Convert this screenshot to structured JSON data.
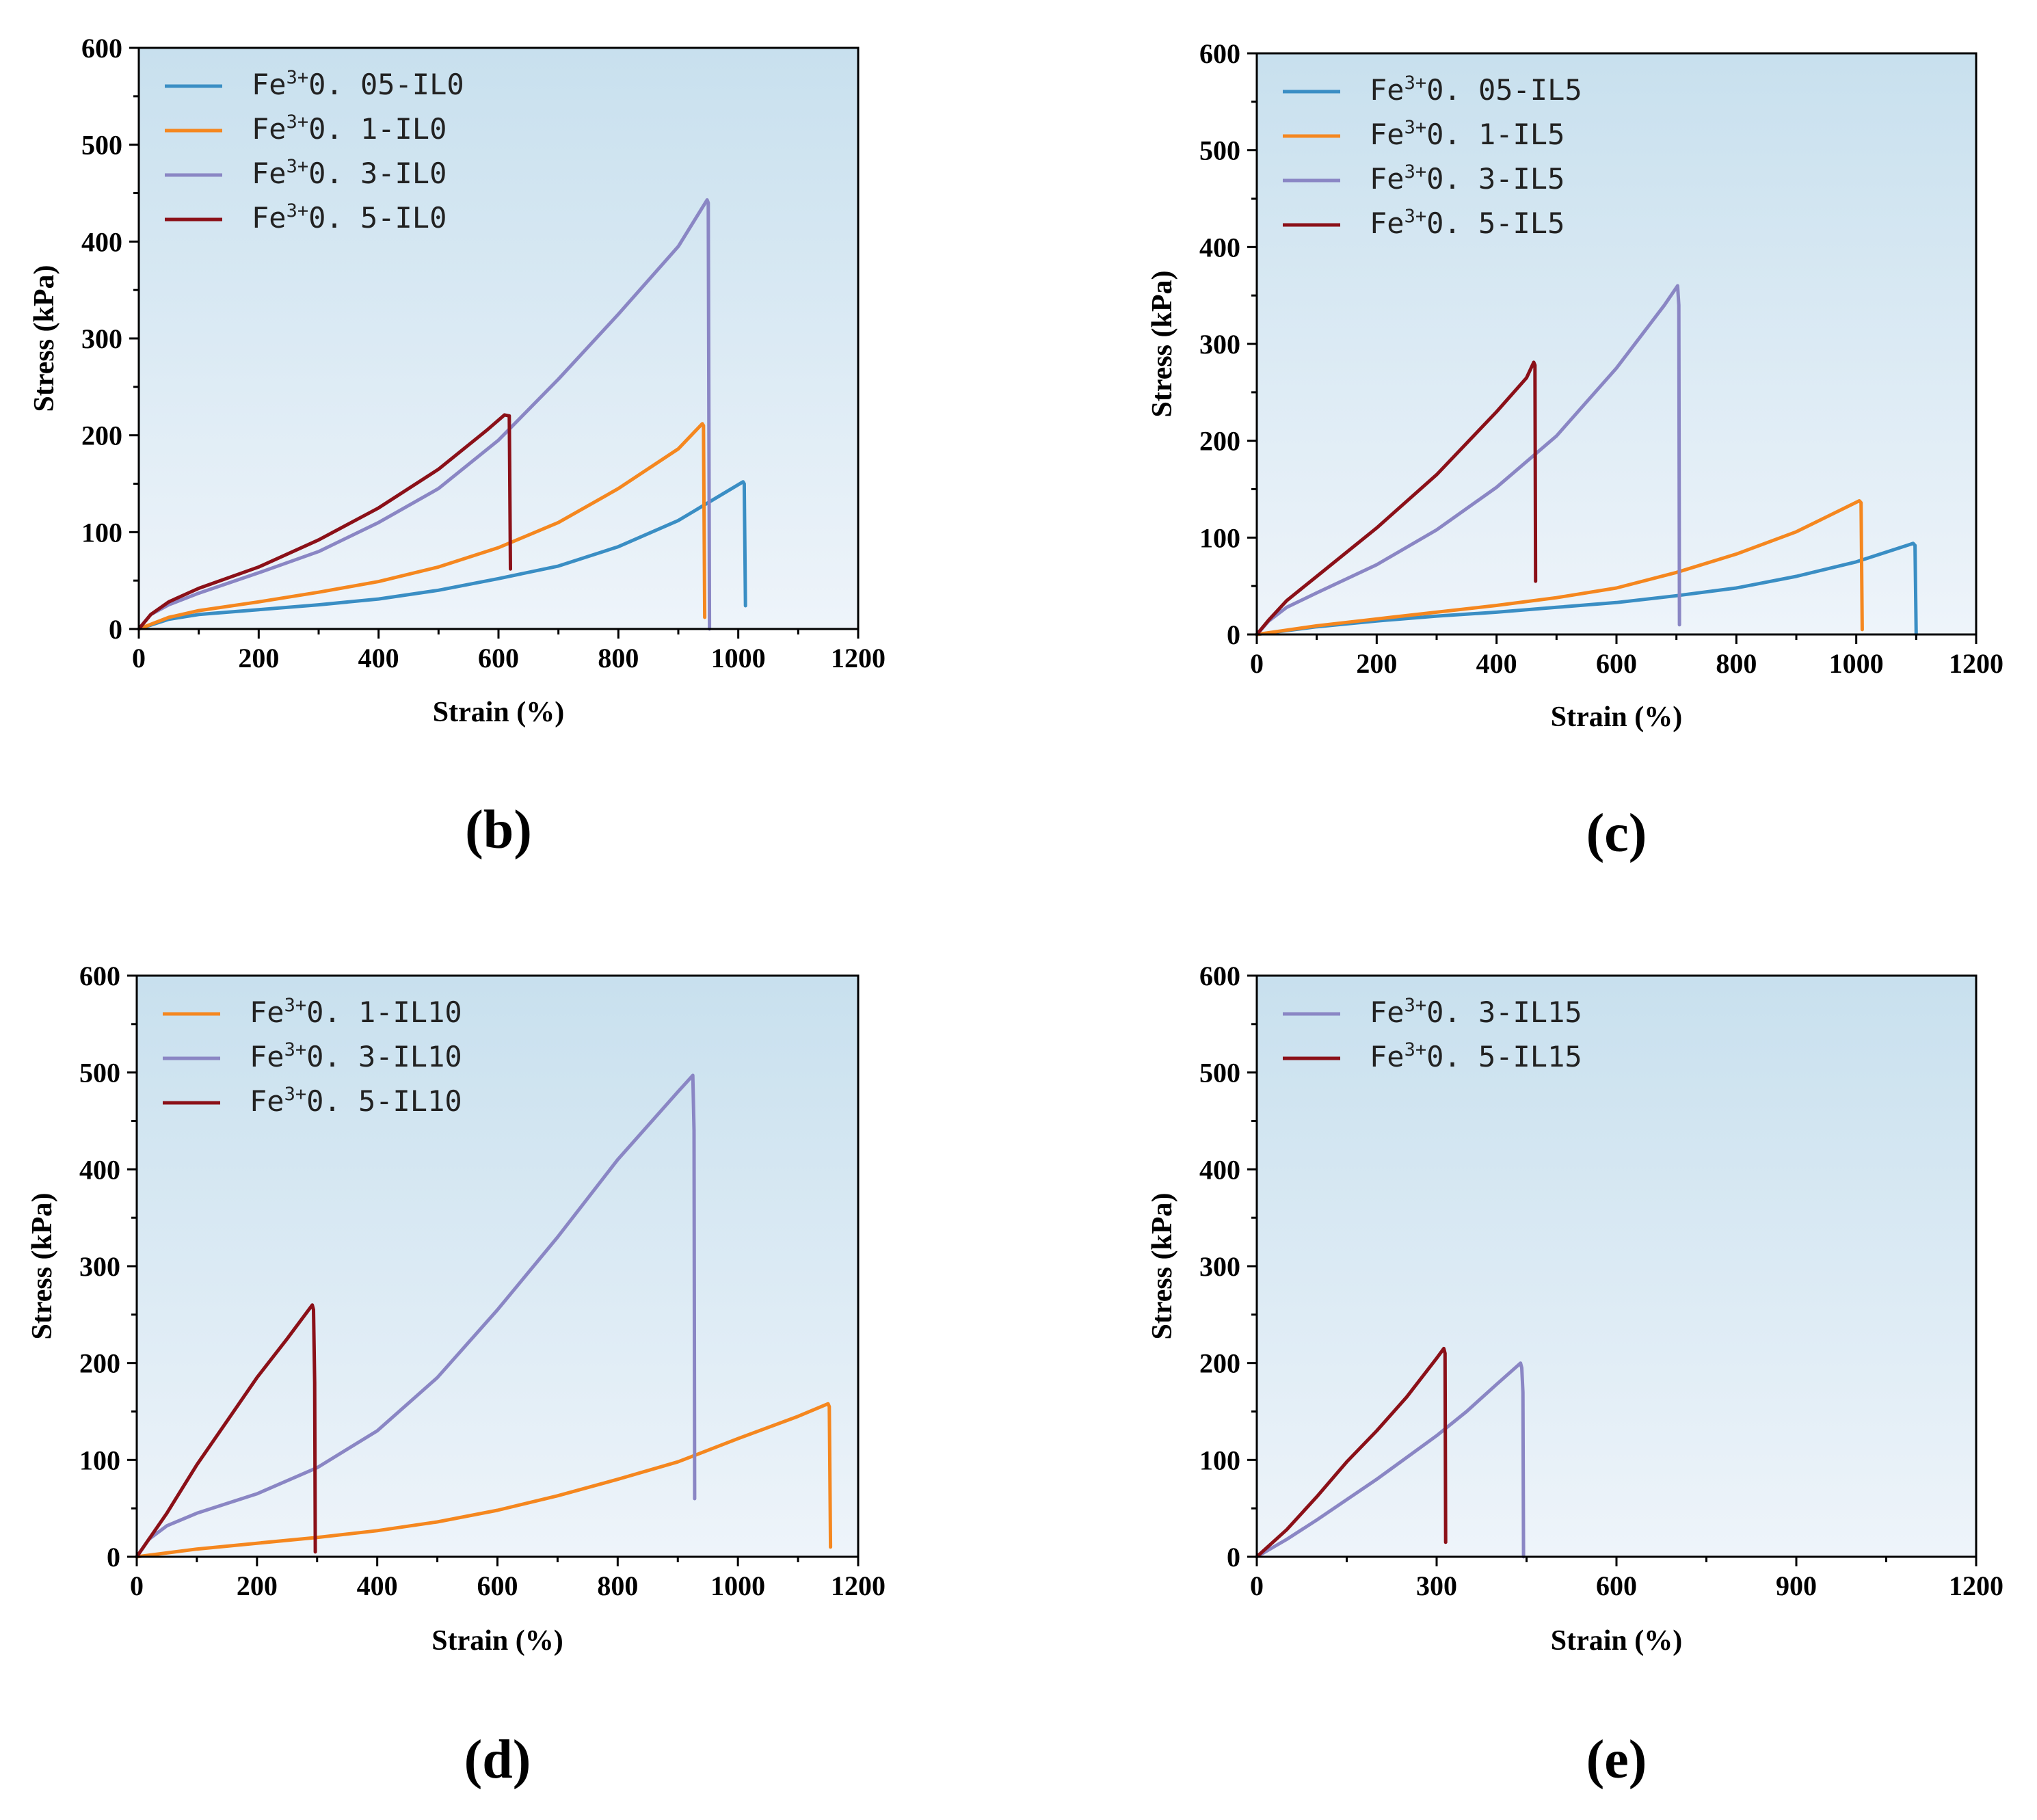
{
  "colors": {
    "blue": "#3a8ec4",
    "orange": "#f5871f",
    "purple": "#8a86c4",
    "darkred": "#8b1018",
    "bg_top": "#c8e0ee",
    "bg_bottom": "#eef4fa"
  },
  "chart_data": [
    {
      "type": "line",
      "panel_label": "(b)",
      "xlabel": "Strain (%)",
      "ylabel": "Stress (kPa)",
      "xlim": [
        0,
        1200
      ],
      "ylim": [
        0,
        600
      ],
      "xticks": [
        0,
        200,
        400,
        600,
        800,
        1000,
        1200
      ],
      "xtick_labels": [
        "0",
        "200",
        "400",
        "600",
        "800",
        "1000",
        "1200"
      ],
      "yticks": [
        0,
        100,
        200,
        300,
        400,
        500,
        600
      ],
      "ytick_labels": [
        "0",
        "100",
        "200",
        "300",
        "400",
        "500",
        "600"
      ],
      "legend_position": "top-left",
      "series": [
        {
          "name": "Fe3+0.05-IL0",
          "legend_base": "Fe",
          "legend_sup": "3+",
          "legend_rest": "0. 05-IL0",
          "color": "blue",
          "points": [
            [
              0,
              0
            ],
            [
              50,
              10
            ],
            [
              100,
              15
            ],
            [
              200,
              20
            ],
            [
              300,
              25
            ],
            [
              400,
              31
            ],
            [
              500,
              40
            ],
            [
              600,
              52
            ],
            [
              700,
              65
            ],
            [
              800,
              85
            ],
            [
              900,
              112
            ],
            [
              1008,
              152
            ],
            [
              1010,
              150
            ],
            [
              1012,
              24
            ]
          ]
        },
        {
          "name": "Fe3+0.1-IL0",
          "legend_base": "Fe",
          "legend_sup": "3+",
          "legend_rest": "0. 1-IL0",
          "color": "orange",
          "points": [
            [
              0,
              0
            ],
            [
              50,
              12
            ],
            [
              100,
              19
            ],
            [
              200,
              28
            ],
            [
              300,
              38
            ],
            [
              400,
              49
            ],
            [
              500,
              64
            ],
            [
              600,
              84
            ],
            [
              700,
              110
            ],
            [
              800,
              145
            ],
            [
              900,
              186
            ],
            [
              940,
              212
            ],
            [
              942,
              210
            ],
            [
              944,
              12
            ]
          ]
        },
        {
          "name": "Fe3+0.3-IL0",
          "legend_base": "Fe",
          "legend_sup": "3+",
          "legend_rest": "0. 3-IL0",
          "color": "purple",
          "points": [
            [
              0,
              0
            ],
            [
              20,
              15
            ],
            [
              50,
              25
            ],
            [
              100,
              37
            ],
            [
              200,
              58
            ],
            [
              300,
              80
            ],
            [
              400,
              110
            ],
            [
              500,
              145
            ],
            [
              600,
              195
            ],
            [
              700,
              258
            ],
            [
              800,
              325
            ],
            [
              900,
              395
            ],
            [
              948,
              443
            ],
            [
              950,
              440
            ],
            [
              952,
              0
            ]
          ]
        },
        {
          "name": "Fe3+0.5-IL0",
          "legend_base": "Fe",
          "legend_sup": "3+",
          "legend_rest": "0. 5-IL0",
          "color": "darkred",
          "points": [
            [
              0,
              0
            ],
            [
              20,
              15
            ],
            [
              50,
              28
            ],
            [
              100,
              42
            ],
            [
              200,
              64
            ],
            [
              300,
              92
            ],
            [
              400,
              125
            ],
            [
              500,
              165
            ],
            [
              580,
              205
            ],
            [
              610,
              221
            ],
            [
              618,
              220
            ],
            [
              620,
              62
            ]
          ]
        }
      ]
    },
    {
      "type": "line",
      "panel_label": "(c)",
      "xlabel": "Strain (%)",
      "ylabel": "Stress (kPa)",
      "xlim": [
        0,
        1200
      ],
      "ylim": [
        0,
        600
      ],
      "xticks": [
        0,
        200,
        400,
        600,
        800,
        1000,
        1200
      ],
      "xtick_labels": [
        "0",
        "200",
        "400",
        "600",
        "800",
        "1000",
        "1200"
      ],
      "yticks": [
        0,
        100,
        200,
        300,
        400,
        500,
        600
      ],
      "ytick_labels": [
        "0",
        "100",
        "200",
        "300",
        "400",
        "500",
        "600"
      ],
      "legend_position": "top-left",
      "series": [
        {
          "name": "Fe3+0.05-IL5",
          "legend_base": "Fe",
          "legend_sup": "3+",
          "legend_rest": "0. 05-IL5",
          "color": "blue",
          "points": [
            [
              0,
              0
            ],
            [
              100,
              8
            ],
            [
              200,
              14
            ],
            [
              300,
              19
            ],
            [
              400,
              23
            ],
            [
              500,
              28
            ],
            [
              600,
              33
            ],
            [
              700,
              40
            ],
            [
              800,
              48
            ],
            [
              900,
              60
            ],
            [
              1000,
              75
            ],
            [
              1095,
              94
            ],
            [
              1098,
              92
            ],
            [
              1100,
              0
            ]
          ]
        },
        {
          "name": "Fe3+0.1-IL5",
          "legend_base": "Fe",
          "legend_sup": "3+",
          "legend_rest": "0. 1-IL5",
          "color": "orange",
          "points": [
            [
              0,
              0
            ],
            [
              100,
              9
            ],
            [
              200,
              16
            ],
            [
              300,
              23
            ],
            [
              400,
              30
            ],
            [
              500,
              38
            ],
            [
              600,
              48
            ],
            [
              700,
              64
            ],
            [
              800,
              83
            ],
            [
              900,
              106
            ],
            [
              1005,
              138
            ],
            [
              1008,
              136
            ],
            [
              1010,
              5
            ]
          ]
        },
        {
          "name": "Fe3+0.3-IL5",
          "legend_base": "Fe",
          "legend_sup": "3+",
          "legend_rest": "0. 3-IL5",
          "color": "purple",
          "points": [
            [
              0,
              0
            ],
            [
              20,
              14
            ],
            [
              50,
              28
            ],
            [
              100,
              43
            ],
            [
              200,
              72
            ],
            [
              300,
              108
            ],
            [
              400,
              152
            ],
            [
              500,
              205
            ],
            [
              600,
              275
            ],
            [
              680,
              340
            ],
            [
              702,
              360
            ],
            [
              704,
              340
            ],
            [
              705,
              10
            ]
          ]
        },
        {
          "name": "Fe3+0.5-IL5",
          "legend_base": "Fe",
          "legend_sup": "3+",
          "legend_rest": "0. 5-IL5",
          "color": "darkred",
          "points": [
            [
              0,
              0
            ],
            [
              20,
              15
            ],
            [
              50,
              35
            ],
            [
              100,
              60
            ],
            [
              200,
              110
            ],
            [
              300,
              165
            ],
            [
              400,
              230
            ],
            [
              450,
              265
            ],
            [
              462,
              281
            ],
            [
              464,
              278
            ],
            [
              465,
              55
            ]
          ]
        }
      ]
    },
    {
      "type": "line",
      "panel_label": "(d)",
      "xlabel": "Strain (%)",
      "ylabel": "Stress (kPa)",
      "xlim": [
        0,
        1200
      ],
      "ylim": [
        0,
        600
      ],
      "xticks": [
        0,
        200,
        400,
        600,
        800,
        1000,
        1200
      ],
      "xtick_labels": [
        "0",
        "200",
        "400",
        "600",
        "800",
        "1000",
        "1200"
      ],
      "yticks": [
        0,
        100,
        200,
        300,
        400,
        500,
        600
      ],
      "ytick_labels": [
        "0",
        "100",
        "200",
        "300",
        "400",
        "500",
        "600"
      ],
      "legend_position": "top-left",
      "series": [
        {
          "name": "Fe3+0.1-IL10",
          "legend_base": "Fe",
          "legend_sup": "3+",
          "legend_rest": "0. 1-IL10",
          "color": "orange",
          "points": [
            [
              0,
              0
            ],
            [
              100,
              8
            ],
            [
              200,
              14
            ],
            [
              300,
              20
            ],
            [
              400,
              27
            ],
            [
              500,
              36
            ],
            [
              600,
              48
            ],
            [
              700,
              63
            ],
            [
              800,
              80
            ],
            [
              900,
              98
            ],
            [
              1000,
              122
            ],
            [
              1100,
              145
            ],
            [
              1150,
              158
            ],
            [
              1152,
              155
            ],
            [
              1154,
              10
            ]
          ]
        },
        {
          "name": "Fe3+0.3-IL10",
          "legend_base": "Fe",
          "legend_sup": "3+",
          "legend_rest": "0. 3-IL10",
          "color": "purple",
          "points": [
            [
              0,
              0
            ],
            [
              20,
              18
            ],
            [
              50,
              32
            ],
            [
              100,
              45
            ],
            [
              200,
              65
            ],
            [
              300,
              92
            ],
            [
              400,
              130
            ],
            [
              500,
              185
            ],
            [
              600,
              255
            ],
            [
              700,
              330
            ],
            [
              800,
              410
            ],
            [
              900,
              480
            ],
            [
              925,
              497
            ],
            [
              927,
              440
            ],
            [
              928,
              60
            ]
          ]
        },
        {
          "name": "Fe3+0.5-IL10",
          "legend_base": "Fe",
          "legend_sup": "3+",
          "legend_rest": "0. 5-IL10",
          "color": "darkred",
          "points": [
            [
              0,
              0
            ],
            [
              50,
              45
            ],
            [
              100,
              95
            ],
            [
              150,
              140
            ],
            [
              200,
              185
            ],
            [
              250,
              225
            ],
            [
              292,
              260
            ],
            [
              294,
              255
            ],
            [
              296,
              180
            ],
            [
              297,
              5
            ]
          ]
        }
      ]
    },
    {
      "type": "line",
      "panel_label": "(e)",
      "xlabel": "Strain (%)",
      "ylabel": "Stress (kPa)",
      "xlim": [
        0,
        1200
      ],
      "ylim": [
        0,
        600
      ],
      "xticks": [
        0,
        300,
        600,
        900,
        1200
      ],
      "xtick_labels": [
        "0",
        "300",
        "600",
        "900",
        "1200"
      ],
      "yticks": [
        0,
        100,
        200,
        300,
        400,
        500,
        600
      ],
      "ytick_labels": [
        "0",
        "100",
        "200",
        "300",
        "400",
        "500",
        "600"
      ],
      "legend_position": "top-left",
      "series": [
        {
          "name": "Fe3+0.3-IL15",
          "legend_base": "Fe",
          "legend_sup": "3+",
          "legend_rest": "0. 3-IL15",
          "color": "purple",
          "points": [
            [
              0,
              0
            ],
            [
              50,
              18
            ],
            [
              100,
              38
            ],
            [
              200,
              80
            ],
            [
              300,
              125
            ],
            [
              350,
              150
            ],
            [
              400,
              178
            ],
            [
              440,
              200
            ],
            [
              442,
              195
            ],
            [
              444,
              170
            ],
            [
              445,
              0
            ]
          ]
        },
        {
          "name": "Fe3+0.5-IL15",
          "legend_base": "Fe",
          "legend_sup": "3+",
          "legend_rest": "0. 5-IL15",
          "color": "darkred",
          "points": [
            [
              0,
              0
            ],
            [
              50,
              28
            ],
            [
              100,
              62
            ],
            [
              150,
              98
            ],
            [
              200,
              130
            ],
            [
              250,
              165
            ],
            [
              300,
              205
            ],
            [
              312,
              215
            ],
            [
              314,
              210
            ],
            [
              315,
              15
            ]
          ]
        }
      ]
    }
  ]
}
